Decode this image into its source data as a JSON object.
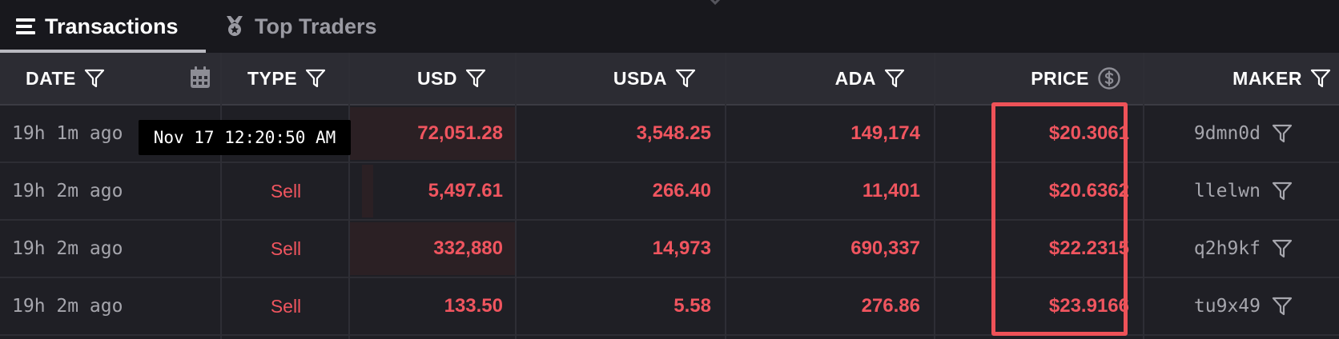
{
  "tabs": [
    {
      "label": "Transactions",
      "icon": "list-icon",
      "active": true
    },
    {
      "label": "Top Traders",
      "icon": "medal-icon",
      "active": false
    }
  ],
  "columns": {
    "date": "DATE",
    "type": "TYPE",
    "usd": "USD",
    "usda": "USDA",
    "ada": "ADA",
    "price": "PRICE",
    "maker": "MAKER"
  },
  "tooltip": "Nov 17 12:20:50 AM",
  "rows": [
    {
      "date": "19h 1m ago",
      "type": "",
      "usd": "72,051.28",
      "usda": "3,548.25",
      "ada": "149,174",
      "price": "$20.3061",
      "maker": "9dmn0d"
    },
    {
      "date": "19h 2m ago",
      "type": "Sell",
      "usd": "5,497.61",
      "usda": "266.40",
      "ada": "11,401",
      "price": "$20.6362",
      "maker": "llelwn"
    },
    {
      "date": "19h 2m ago",
      "type": "Sell",
      "usd": "332,880",
      "usda": "14,973",
      "ada": "690,337",
      "price": "$22.2315",
      "maker": "q2h9kf"
    },
    {
      "date": "19h 2m ago",
      "type": "Sell",
      "usd": "133.50",
      "usda": "5.58",
      "ada": "276.86",
      "price": "$23.9166",
      "maker": "tu9x49"
    }
  ],
  "colors": {
    "sell": "#f0555f",
    "background": "#1f1f25",
    "header_bg": "#2c2c33",
    "highlight": "#ee5258"
  }
}
